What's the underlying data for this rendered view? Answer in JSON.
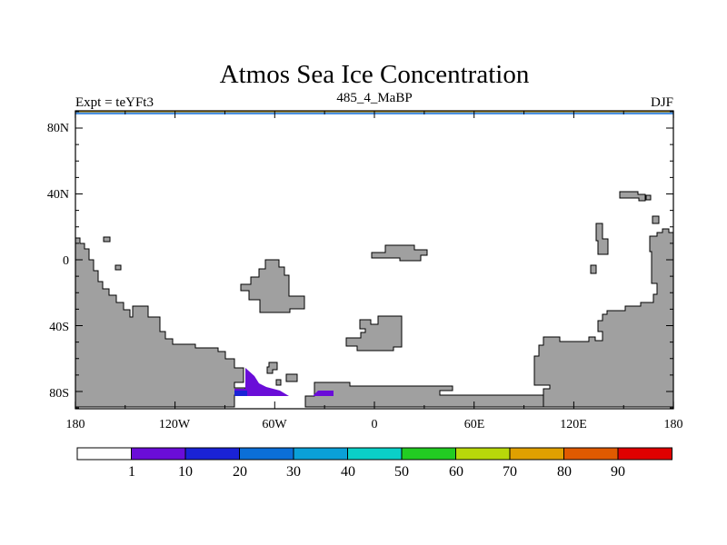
{
  "title": "Atmos Sea Ice Concentration",
  "left_subtitle": "Expt = teYFt3",
  "center_subtitle": "485_4_MaBP",
  "right_subtitle": "DJF",
  "lat_labels": [
    "80N",
    "40N",
    "0",
    "40S",
    "80S"
  ],
  "lon_labels": [
    "180",
    "120W",
    "60W",
    "0",
    "60E",
    "120E",
    "180"
  ],
  "colorbar": {
    "labels": [
      "1",
      "10",
      "20",
      "30",
      "40",
      "50",
      "60",
      "70",
      "80",
      "90"
    ],
    "colors": [
      "#ffffff",
      "#6a0dd8",
      "#1a22d6",
      "#0b6fd8",
      "#0aa0d8",
      "#0ad0c8",
      "#22cc22",
      "#b8d80a",
      "#e0a000",
      "#e05a00",
      "#e00000"
    ]
  },
  "colors": {
    "land": "#a0a0a0",
    "sea_ice": "#6a0dd8",
    "sea_ice_dense": "#1a22d6",
    "top_strip": "#4a90e0",
    "top_strip_edge": "#e0a000"
  }
}
